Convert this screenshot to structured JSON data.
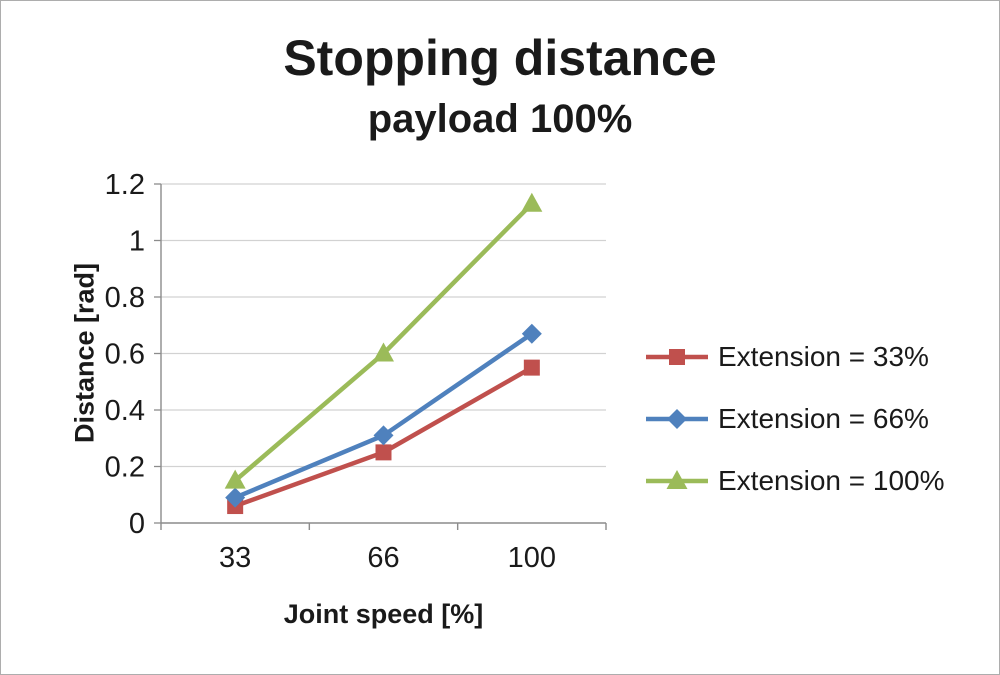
{
  "chart_data": {
    "type": "line",
    "title": "Stopping distance",
    "subtitle": "payload 100%",
    "xlabel": "Joint speed [%]",
    "ylabel": "Distance [rad]",
    "categories": [
      "33",
      "66",
      "100"
    ],
    "series": [
      {
        "name": "Extension = 33%",
        "color": "#C0504D",
        "marker": "square",
        "values": [
          0.06,
          0.25,
          0.55
        ]
      },
      {
        "name": "Extension = 66%",
        "color": "#4F81BD",
        "marker": "diamond",
        "values": [
          0.09,
          0.31,
          0.67
        ]
      },
      {
        "name": "Extension = 100%",
        "color": "#9BBB59",
        "marker": "triangle",
        "values": [
          0.15,
          0.6,
          1.13
        ]
      }
    ],
    "ylim": [
      0,
      1.2
    ],
    "ytick_step": 0.2,
    "yticks": [
      "0",
      "0.2",
      "0.4",
      "0.6",
      "0.8",
      "1",
      "1.2"
    ],
    "grid": true,
    "legend_position": "right",
    "colors": {
      "gridline": "#d2d2d2",
      "axis": "#8c8c8c",
      "text": "#1a1a1a"
    }
  }
}
